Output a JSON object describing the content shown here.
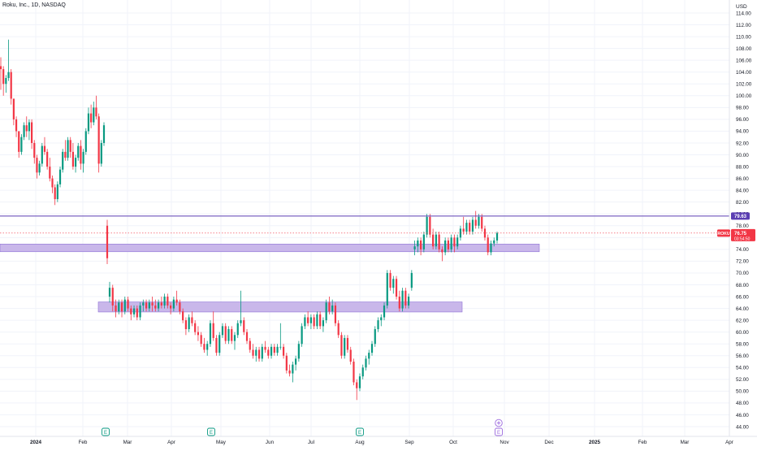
{
  "header": {
    "title": "Roku, Inc., 1D, NASDAQ"
  },
  "chart_data": {
    "type": "candlestick",
    "currency_label": "USD",
    "ylim": [
      43,
      115
    ],
    "y_ticks": [
      44,
      46,
      48,
      50,
      52,
      54,
      56,
      58,
      60,
      62,
      64,
      66,
      68,
      70,
      72,
      74,
      76,
      78,
      80,
      82,
      84,
      86,
      88,
      90,
      92,
      94,
      96,
      98,
      100,
      102,
      104,
      106,
      108,
      110,
      112,
      114
    ],
    "x_labels": [
      "2024",
      "Feb",
      "Mar",
      "Apr",
      "May",
      "Jun",
      "Jul",
      "Aug",
      "Sep",
      "Oct",
      "Nov",
      "Dec",
      "2025",
      "Feb",
      "Mar",
      "Apr"
    ],
    "x_label_bold": [
      "2024",
      "2025"
    ],
    "horizontal_line": {
      "value": 79.63,
      "label": "79.63",
      "color": "#5b3fb3"
    },
    "last_price": {
      "symbol": "ROKU",
      "value": "76.75",
      "countdown": "03:54:50",
      "color": "#f23645"
    },
    "zones": [
      {
        "y_low": 73.6,
        "y_high": 74.9,
        "color": "#c9b7ea"
      },
      {
        "y_low": 63.4,
        "y_high": 65.1,
        "color": "#c9b7ea"
      }
    ],
    "earnings_markers": [
      "E",
      "E",
      "E",
      "E"
    ],
    "colors": {
      "up": "#089981",
      "down": "#f23645",
      "grid": "#f0f3fa",
      "axis_text": "#131722"
    },
    "candles": [
      {
        "o": 105.0,
        "h": 106.5,
        "l": 101.0,
        "c": 104.5
      },
      {
        "o": 104.5,
        "h": 105.0,
        "l": 100.0,
        "c": 102.0
      },
      {
        "o": 102.0,
        "h": 103.5,
        "l": 100.5,
        "c": 103.0
      },
      {
        "o": 103.0,
        "h": 109.5,
        "l": 102.5,
        "c": 104.0
      },
      {
        "o": 104.0,
        "h": 104.5,
        "l": 98.5,
        "c": 99.5
      },
      {
        "o": 99.5,
        "h": 99.5,
        "l": 95.0,
        "c": 96.0
      },
      {
        "o": 96.0,
        "h": 96.5,
        "l": 93.0,
        "c": 94.0
      },
      {
        "o": 94.0,
        "h": 94.0,
        "l": 89.5,
        "c": 90.5
      },
      {
        "o": 90.5,
        "h": 93.5,
        "l": 90.0,
        "c": 93.0
      },
      {
        "o": 93.0,
        "h": 95.5,
        "l": 92.5,
        "c": 95.0
      },
      {
        "o": 95.0,
        "h": 96.5,
        "l": 93.0,
        "c": 94.0
      },
      {
        "o": 94.0,
        "h": 96.0,
        "l": 92.5,
        "c": 95.5
      },
      {
        "o": 95.5,
        "h": 96.0,
        "l": 91.0,
        "c": 92.0
      },
      {
        "o": 92.0,
        "h": 92.5,
        "l": 88.5,
        "c": 89.5
      },
      {
        "o": 89.5,
        "h": 90.0,
        "l": 86.0,
        "c": 87.0
      },
      {
        "o": 87.0,
        "h": 89.0,
        "l": 86.5,
        "c": 88.5
      },
      {
        "o": 88.5,
        "h": 92.0,
        "l": 88.0,
        "c": 91.5
      },
      {
        "o": 91.5,
        "h": 93.0,
        "l": 90.0,
        "c": 90.5
      },
      {
        "o": 90.5,
        "h": 91.0,
        "l": 87.5,
        "c": 88.0
      },
      {
        "o": 88.0,
        "h": 89.5,
        "l": 85.5,
        "c": 86.0
      },
      {
        "o": 86.0,
        "h": 86.5,
        "l": 83.5,
        "c": 84.5
      },
      {
        "o": 84.5,
        "h": 85.0,
        "l": 81.5,
        "c": 82.5
      },
      {
        "o": 82.5,
        "h": 85.5,
        "l": 82.0,
        "c": 85.0
      },
      {
        "o": 85.0,
        "h": 88.0,
        "l": 84.5,
        "c": 87.5
      },
      {
        "o": 87.5,
        "h": 91.0,
        "l": 87.0,
        "c": 90.5
      },
      {
        "o": 90.5,
        "h": 92.5,
        "l": 89.0,
        "c": 89.5
      },
      {
        "o": 89.5,
        "h": 93.0,
        "l": 89.0,
        "c": 92.5
      },
      {
        "o": 92.5,
        "h": 93.0,
        "l": 89.5,
        "c": 90.5
      },
      {
        "o": 90.5,
        "h": 92.0,
        "l": 87.5,
        "c": 88.0
      },
      {
        "o": 88.0,
        "h": 90.0,
        "l": 87.0,
        "c": 89.5
      },
      {
        "o": 89.5,
        "h": 92.0,
        "l": 89.0,
        "c": 91.5
      },
      {
        "o": 91.5,
        "h": 92.5,
        "l": 87.5,
        "c": 88.5
      },
      {
        "o": 88.5,
        "h": 91.0,
        "l": 87.0,
        "c": 90.5
      },
      {
        "o": 90.5,
        "h": 94.5,
        "l": 90.0,
        "c": 94.0
      },
      {
        "o": 94.0,
        "h": 98.0,
        "l": 93.5,
        "c": 97.0
      },
      {
        "o": 97.0,
        "h": 98.5,
        "l": 94.5,
        "c": 95.5
      },
      {
        "o": 95.5,
        "h": 99.0,
        "l": 95.0,
        "c": 98.0
      },
      {
        "o": 98.0,
        "h": 100.0,
        "l": 96.0,
        "c": 96.5
      },
      {
        "o": 96.5,
        "h": 97.0,
        "l": 87.0,
        "c": 88.5
      },
      {
        "o": 88.5,
        "h": 92.5,
        "l": 88.0,
        "c": 92.0
      },
      {
        "o": 92.0,
        "h": 95.5,
        "l": 91.5,
        "c": 95.0
      },
      {
        "o": 78.0,
        "h": 79.0,
        "l": 71.5,
        "c": 72.5
      },
      {
        "o": 66.0,
        "h": 68.5,
        "l": 65.0,
        "c": 67.5
      },
      {
        "o": 67.5,
        "h": 68.0,
        "l": 63.5,
        "c": 64.5
      },
      {
        "o": 64.5,
        "h": 65.5,
        "l": 62.5,
        "c": 63.5
      },
      {
        "o": 63.5,
        "h": 65.5,
        "l": 63.0,
        "c": 65.0
      },
      {
        "o": 65.0,
        "h": 65.5,
        "l": 62.5,
        "c": 63.5
      },
      {
        "o": 63.5,
        "h": 66.0,
        "l": 63.0,
        "c": 65.5
      },
      {
        "o": 65.5,
        "h": 66.0,
        "l": 63.5,
        "c": 64.0
      },
      {
        "o": 64.0,
        "h": 64.5,
        "l": 62.0,
        "c": 63.0
      },
      {
        "o": 63.0,
        "h": 64.5,
        "l": 62.5,
        "c": 64.0
      },
      {
        "o": 64.0,
        "h": 64.5,
        "l": 62.0,
        "c": 62.5
      },
      {
        "o": 62.5,
        "h": 65.0,
        "l": 62.0,
        "c": 64.5
      },
      {
        "o": 64.5,
        "h": 65.5,
        "l": 63.5,
        "c": 65.0
      },
      {
        "o": 65.0,
        "h": 65.5,
        "l": 63.5,
        "c": 64.0
      },
      {
        "o": 64.0,
        "h": 65.5,
        "l": 63.5,
        "c": 65.0
      },
      {
        "o": 65.0,
        "h": 66.0,
        "l": 63.5,
        "c": 64.5
      },
      {
        "o": 64.5,
        "h": 65.5,
        "l": 63.5,
        "c": 64.0
      },
      {
        "o": 64.0,
        "h": 65.5,
        "l": 63.5,
        "c": 65.0
      },
      {
        "o": 65.0,
        "h": 66.0,
        "l": 64.0,
        "c": 64.5
      },
      {
        "o": 64.5,
        "h": 66.5,
        "l": 64.0,
        "c": 66.0
      },
      {
        "o": 66.0,
        "h": 66.5,
        "l": 64.0,
        "c": 64.5
      },
      {
        "o": 64.5,
        "h": 65.0,
        "l": 63.0,
        "c": 64.0
      },
      {
        "o": 64.0,
        "h": 66.0,
        "l": 63.5,
        "c": 65.5
      },
      {
        "o": 65.5,
        "h": 67.0,
        "l": 64.5,
        "c": 65.0
      },
      {
        "o": 65.0,
        "h": 65.5,
        "l": 63.0,
        "c": 63.5
      },
      {
        "o": 63.5,
        "h": 64.0,
        "l": 61.5,
        "c": 62.0
      },
      {
        "o": 62.0,
        "h": 62.5,
        "l": 59.5,
        "c": 60.5
      },
      {
        "o": 60.5,
        "h": 63.0,
        "l": 60.0,
        "c": 62.5
      },
      {
        "o": 62.5,
        "h": 63.5,
        "l": 61.0,
        "c": 61.5
      },
      {
        "o": 61.5,
        "h": 62.0,
        "l": 59.5,
        "c": 60.0
      },
      {
        "o": 60.0,
        "h": 61.0,
        "l": 58.5,
        "c": 59.5
      },
      {
        "o": 59.5,
        "h": 60.0,
        "l": 57.5,
        "c": 58.0
      },
      {
        "o": 58.0,
        "h": 59.0,
        "l": 56.5,
        "c": 57.0
      },
      {
        "o": 57.0,
        "h": 58.5,
        "l": 56.0,
        "c": 58.0
      },
      {
        "o": 58.0,
        "h": 62.0,
        "l": 57.5,
        "c": 61.5
      },
      {
        "o": 61.5,
        "h": 63.5,
        "l": 58.5,
        "c": 59.0
      },
      {
        "o": 59.0,
        "h": 59.5,
        "l": 56.0,
        "c": 56.5
      },
      {
        "o": 56.5,
        "h": 60.0,
        "l": 56.0,
        "c": 59.5
      },
      {
        "o": 59.5,
        "h": 61.5,
        "l": 59.0,
        "c": 61.0
      },
      {
        "o": 61.0,
        "h": 61.5,
        "l": 58.0,
        "c": 58.5
      },
      {
        "o": 58.5,
        "h": 61.0,
        "l": 58.0,
        "c": 60.5
      },
      {
        "o": 60.5,
        "h": 61.0,
        "l": 58.0,
        "c": 58.5
      },
      {
        "o": 58.5,
        "h": 60.0,
        "l": 57.0,
        "c": 59.5
      },
      {
        "o": 59.5,
        "h": 62.0,
        "l": 59.0,
        "c": 61.5
      },
      {
        "o": 61.5,
        "h": 67.0,
        "l": 61.0,
        "c": 62.0
      },
      {
        "o": 62.0,
        "h": 62.5,
        "l": 59.5,
        "c": 60.0
      },
      {
        "o": 60.0,
        "h": 60.5,
        "l": 58.0,
        "c": 58.5
      },
      {
        "o": 58.5,
        "h": 59.0,
        "l": 56.5,
        "c": 57.0
      },
      {
        "o": 57.0,
        "h": 58.0,
        "l": 55.5,
        "c": 56.0
      },
      {
        "o": 56.0,
        "h": 57.5,
        "l": 55.0,
        "c": 57.0
      },
      {
        "o": 57.0,
        "h": 57.5,
        "l": 55.0,
        "c": 55.5
      },
      {
        "o": 55.5,
        "h": 58.0,
        "l": 55.0,
        "c": 57.5
      },
      {
        "o": 57.5,
        "h": 58.5,
        "l": 56.5,
        "c": 57.0
      },
      {
        "o": 57.0,
        "h": 57.5,
        "l": 55.5,
        "c": 56.0
      },
      {
        "o": 56.0,
        "h": 58.0,
        "l": 55.5,
        "c": 57.5
      },
      {
        "o": 57.5,
        "h": 58.0,
        "l": 56.0,
        "c": 56.5
      },
      {
        "o": 56.5,
        "h": 58.0,
        "l": 56.0,
        "c": 57.5
      },
      {
        "o": 57.5,
        "h": 61.5,
        "l": 57.0,
        "c": 57.5
      },
      {
        "o": 57.5,
        "h": 58.0,
        "l": 55.5,
        "c": 56.0
      },
      {
        "o": 56.0,
        "h": 56.5,
        "l": 53.0,
        "c": 53.5
      },
      {
        "o": 53.5,
        "h": 54.5,
        "l": 52.5,
        "c": 53.0
      },
      {
        "o": 53.0,
        "h": 55.0,
        "l": 51.5,
        "c": 54.5
      },
      {
        "o": 54.5,
        "h": 56.0,
        "l": 53.5,
        "c": 55.5
      },
      {
        "o": 55.5,
        "h": 58.5,
        "l": 55.0,
        "c": 58.0
      },
      {
        "o": 58.0,
        "h": 61.5,
        "l": 57.5,
        "c": 61.0
      },
      {
        "o": 61.0,
        "h": 63.0,
        "l": 60.5,
        "c": 62.5
      },
      {
        "o": 62.5,
        "h": 63.5,
        "l": 61.0,
        "c": 61.5
      },
      {
        "o": 61.5,
        "h": 63.0,
        "l": 60.5,
        "c": 62.5
      },
      {
        "o": 62.5,
        "h": 63.0,
        "l": 60.5,
        "c": 61.0
      },
      {
        "o": 61.0,
        "h": 63.5,
        "l": 60.5,
        "c": 63.0
      },
      {
        "o": 63.0,
        "h": 63.5,
        "l": 60.5,
        "c": 61.0
      },
      {
        "o": 61.0,
        "h": 62.5,
        "l": 60.0,
        "c": 62.0
      },
      {
        "o": 62.0,
        "h": 65.5,
        "l": 61.5,
        "c": 65.0
      },
      {
        "o": 65.0,
        "h": 66.0,
        "l": 63.0,
        "c": 63.5
      },
      {
        "o": 63.5,
        "h": 65.5,
        "l": 63.0,
        "c": 64.5
      },
      {
        "o": 64.5,
        "h": 65.0,
        "l": 61.0,
        "c": 61.5
      },
      {
        "o": 61.5,
        "h": 62.0,
        "l": 59.0,
        "c": 59.5
      },
      {
        "o": 59.5,
        "h": 60.0,
        "l": 55.5,
        "c": 56.0
      },
      {
        "o": 56.0,
        "h": 59.5,
        "l": 55.5,
        "c": 59.0
      },
      {
        "o": 59.0,
        "h": 59.5,
        "l": 56.5,
        "c": 57.0
      },
      {
        "o": 57.0,
        "h": 57.5,
        "l": 54.5,
        "c": 55.0
      },
      {
        "o": 55.0,
        "h": 55.5,
        "l": 51.0,
        "c": 51.5
      },
      {
        "o": 51.5,
        "h": 52.0,
        "l": 48.5,
        "c": 50.5
      },
      {
        "o": 50.5,
        "h": 53.0,
        "l": 50.0,
        "c": 52.5
      },
      {
        "o": 52.5,
        "h": 54.5,
        "l": 52.0,
        "c": 54.0
      },
      {
        "o": 54.0,
        "h": 56.0,
        "l": 53.5,
        "c": 55.5
      },
      {
        "o": 55.5,
        "h": 57.0,
        "l": 54.5,
        "c": 56.5
      },
      {
        "o": 56.5,
        "h": 58.5,
        "l": 56.0,
        "c": 58.0
      },
      {
        "o": 58.0,
        "h": 61.0,
        "l": 57.5,
        "c": 60.5
      },
      {
        "o": 60.5,
        "h": 62.5,
        "l": 60.0,
        "c": 62.0
      },
      {
        "o": 62.0,
        "h": 63.0,
        "l": 61.0,
        "c": 62.5
      },
      {
        "o": 62.5,
        "h": 65.0,
        "l": 62.0,
        "c": 64.5
      },
      {
        "o": 64.5,
        "h": 70.5,
        "l": 64.0,
        "c": 70.0
      },
      {
        "o": 70.0,
        "h": 70.5,
        "l": 67.0,
        "c": 67.5
      },
      {
        "o": 67.5,
        "h": 69.5,
        "l": 66.5,
        "c": 69.0
      },
      {
        "o": 69.0,
        "h": 69.5,
        "l": 65.5,
        "c": 66.0
      },
      {
        "o": 66.0,
        "h": 67.0,
        "l": 63.5,
        "c": 64.0
      },
      {
        "o": 64.0,
        "h": 67.5,
        "l": 63.5,
        "c": 67.0
      },
      {
        "o": 67.0,
        "h": 67.5,
        "l": 64.0,
        "c": 64.5
      },
      {
        "o": 64.5,
        "h": 66.5,
        "l": 64.0,
        "c": 66.0
      },
      {
        "o": 67.5,
        "h": 70.5,
        "l": 67.0,
        "c": 70.0
      },
      {
        "o": 74.0,
        "h": 75.5,
        "l": 73.0,
        "c": 74.5
      },
      {
        "o": 74.5,
        "h": 76.0,
        "l": 73.5,
        "c": 75.5
      },
      {
        "o": 75.5,
        "h": 76.0,
        "l": 73.0,
        "c": 74.0
      },
      {
        "o": 74.0,
        "h": 77.0,
        "l": 73.5,
        "c": 76.5
      },
      {
        "o": 76.5,
        "h": 80.0,
        "l": 76.0,
        "c": 79.5
      },
      {
        "o": 79.5,
        "h": 80.0,
        "l": 76.0,
        "c": 76.5
      },
      {
        "o": 76.5,
        "h": 77.5,
        "l": 74.0,
        "c": 74.5
      },
      {
        "o": 74.5,
        "h": 77.0,
        "l": 74.0,
        "c": 76.5
      },
      {
        "o": 76.5,
        "h": 77.0,
        "l": 73.5,
        "c": 74.0
      },
      {
        "o": 74.0,
        "h": 74.5,
        "l": 72.0,
        "c": 73.5
      },
      {
        "o": 73.5,
        "h": 76.0,
        "l": 73.0,
        "c": 75.5
      },
      {
        "o": 75.5,
        "h": 76.0,
        "l": 73.5,
        "c": 74.0
      },
      {
        "o": 74.0,
        "h": 76.5,
        "l": 73.5,
        "c": 76.0
      },
      {
        "o": 76.0,
        "h": 76.5,
        "l": 73.5,
        "c": 74.5
      },
      {
        "o": 74.5,
        "h": 76.5,
        "l": 74.0,
        "c": 76.0
      },
      {
        "o": 76.0,
        "h": 78.0,
        "l": 75.5,
        "c": 77.5
      },
      {
        "o": 77.5,
        "h": 79.5,
        "l": 76.5,
        "c": 77.0
      },
      {
        "o": 77.0,
        "h": 79.0,
        "l": 76.5,
        "c": 78.5
      },
      {
        "o": 78.5,
        "h": 79.0,
        "l": 76.5,
        "c": 77.0
      },
      {
        "o": 77.0,
        "h": 79.5,
        "l": 76.5,
        "c": 79.0
      },
      {
        "o": 79.0,
        "h": 80.5,
        "l": 77.5,
        "c": 78.0
      },
      {
        "o": 78.0,
        "h": 80.0,
        "l": 77.5,
        "c": 79.5
      },
      {
        "o": 79.5,
        "h": 80.0,
        "l": 77.0,
        "c": 77.5
      },
      {
        "o": 77.5,
        "h": 78.0,
        "l": 75.5,
        "c": 76.0
      },
      {
        "o": 76.0,
        "h": 76.5,
        "l": 73.0,
        "c": 73.5
      },
      {
        "o": 73.5,
        "h": 75.5,
        "l": 73.0,
        "c": 75.0
      },
      {
        "o": 75.0,
        "h": 76.0,
        "l": 74.5,
        "c": 75.5
      },
      {
        "o": 75.5,
        "h": 77.0,
        "l": 75.0,
        "c": 76.75
      }
    ]
  }
}
